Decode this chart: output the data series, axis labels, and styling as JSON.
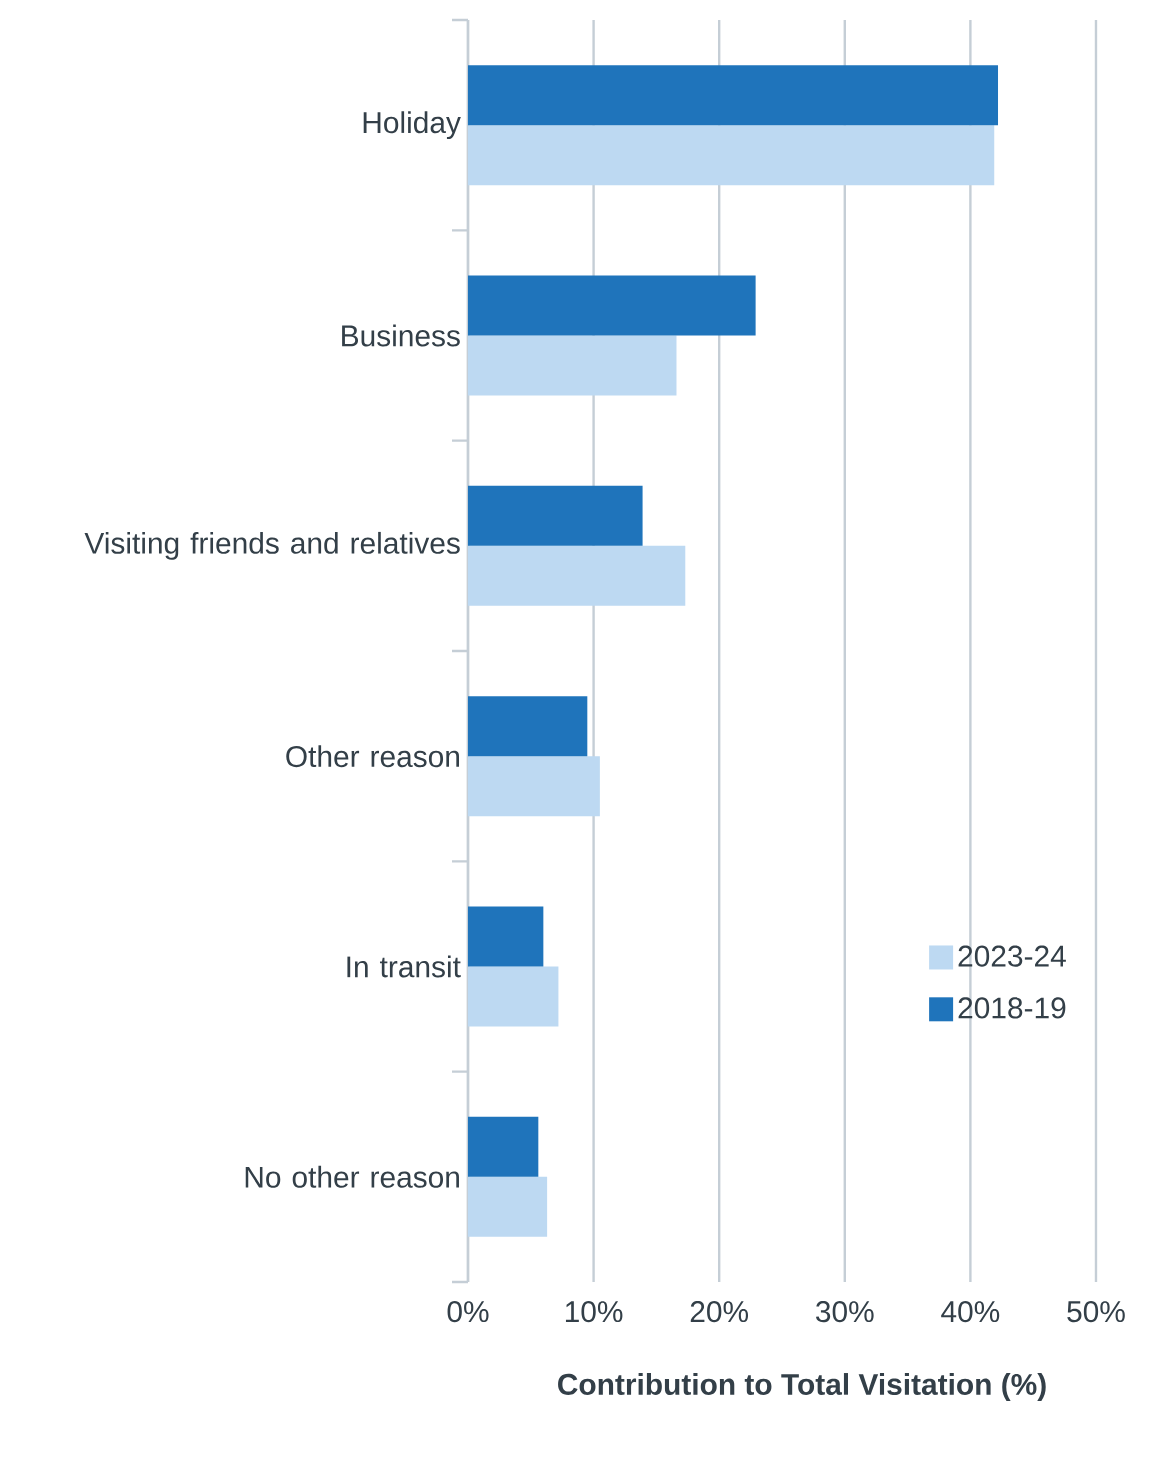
{
  "chart_data": {
    "type": "bar",
    "orientation": "horizontal",
    "xlabel": "Contribution to Total Visitation (%)",
    "categories": [
      "Holiday",
      "Business",
      "Visiting friends and relatives",
      "Other reason",
      "In transit",
      "No other reason"
    ],
    "series": [
      {
        "name": "2023-24",
        "color": "#bdd9f2",
        "values": [
          41.9,
          16.6,
          17.3,
          10.5,
          7.2,
          6.3
        ]
      },
      {
        "name": "2018-19",
        "color": "#1f74bb",
        "values": [
          42.2,
          22.9,
          13.9,
          9.5,
          6.0,
          5.6
        ]
      }
    ],
    "xlim": [
      0,
      50
    ],
    "xticks": [
      {
        "value": 0,
        "label": "0%"
      },
      {
        "value": 10,
        "label": "10%"
      },
      {
        "value": 20,
        "label": "20%"
      },
      {
        "value": 30,
        "label": "30%"
      },
      {
        "value": 40,
        "label": "40%"
      },
      {
        "value": 50,
        "label": "50%"
      }
    ],
    "grid": "x",
    "legend": "bottom right"
  }
}
